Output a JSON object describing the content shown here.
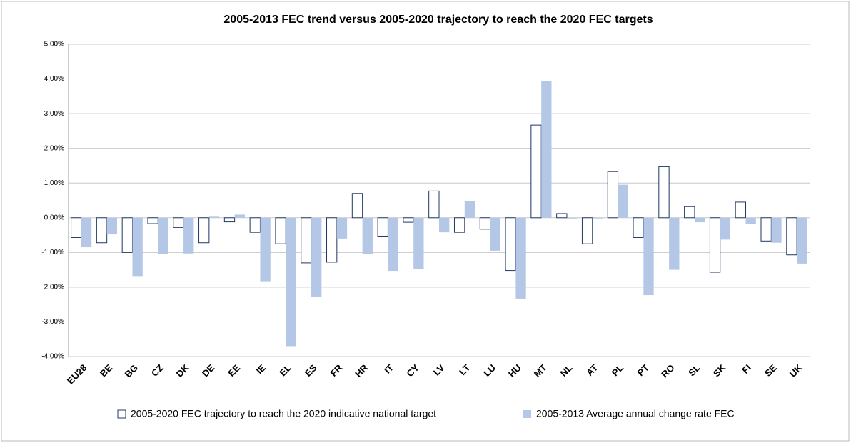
{
  "chart_data": {
    "type": "bar",
    "title": "2005-2013 FEC trend versus 2005-2020 trajectory to reach the 2020 FEC targets",
    "categories": [
      "EU28",
      "BE",
      "BG",
      "CZ",
      "DK",
      "DE",
      "EE",
      "IE",
      "EL",
      "ES",
      "FR",
      "HR",
      "IT",
      "CY",
      "LV",
      "LT",
      "LU",
      "HU",
      "MT",
      "NL",
      "AT",
      "PL",
      "PT",
      "RO",
      "SL",
      "SK",
      "FI",
      "SE",
      "UK"
    ],
    "series": [
      {
        "name": "2005-2020 FEC trajectory to reach the 2020 indicative national target",
        "color": "#ffffff",
        "stroke": "#1f3864",
        "values": [
          -0.57,
          -0.72,
          -1.0,
          -0.17,
          -0.28,
          -0.72,
          -0.12,
          -0.42,
          -0.75,
          -1.3,
          -1.28,
          0.7,
          -0.53,
          -0.13,
          0.77,
          -0.42,
          -0.33,
          -1.52,
          2.67,
          0.12,
          -0.75,
          1.33,
          -0.57,
          1.47,
          0.32,
          -1.57,
          0.45,
          -0.67,
          -1.07
        ]
      },
      {
        "name": "2005-2013 Average annual change rate FEC",
        "color": "#b4c7e7",
        "values": [
          -0.85,
          -0.48,
          -1.68,
          -1.05,
          -1.03,
          0.03,
          0.09,
          -1.83,
          -3.7,
          -2.27,
          -0.6,
          -1.05,
          -1.53,
          -1.47,
          -0.42,
          0.48,
          -0.95,
          -2.33,
          3.93,
          -0.02,
          -0.02,
          0.95,
          -2.23,
          -1.5,
          -0.13,
          -0.63,
          -0.17,
          -0.72,
          -1.32
        ]
      }
    ],
    "ylim": [
      -4,
      5
    ],
    "yticks": [
      {
        "value": -4,
        "label": "-4.00%"
      },
      {
        "value": -3,
        "label": "-3.00%"
      },
      {
        "value": -2,
        "label": "-2.00%"
      },
      {
        "value": -1,
        "label": "-1.00%"
      },
      {
        "value": 0,
        "label": "0.00%"
      },
      {
        "value": 1,
        "label": "1.00%"
      },
      {
        "value": 2,
        "label": "2.00%"
      },
      {
        "value": 3,
        "label": "3.00%"
      },
      {
        "value": 4,
        "label": "4.00%"
      },
      {
        "value": 5,
        "label": "5.00%"
      }
    ],
    "grid": true,
    "legend": "bottom"
  }
}
